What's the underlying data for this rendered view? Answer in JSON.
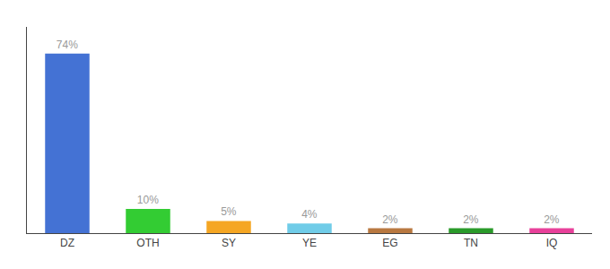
{
  "chart_data": {
    "type": "bar",
    "categories": [
      "DZ",
      "OTH",
      "SY",
      "YE",
      "EG",
      "TN",
      "IQ"
    ],
    "values": [
      74,
      10,
      5,
      4,
      2,
      2,
      2
    ],
    "value_labels": [
      "74%",
      "10%",
      "5%",
      "4%",
      "2%",
      "2%",
      "2%"
    ],
    "colors": [
      "#4472d4",
      "#33cc33",
      "#f5a623",
      "#70cce8",
      "#b87840",
      "#2a9a2a",
      "#e8409a"
    ],
    "ylim": [
      0,
      85
    ],
    "grid": false,
    "data_labels": true,
    "tick_labels": "x"
  }
}
